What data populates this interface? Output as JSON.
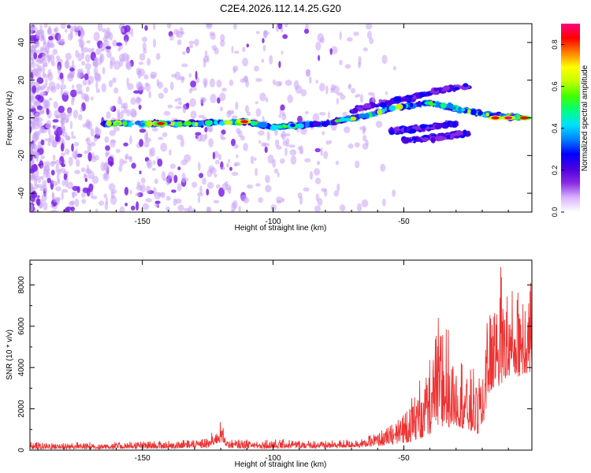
{
  "title": "C2E4.2026.112.14.25.G20",
  "chart_data": [
    {
      "type": "heatmap",
      "title": "C2E4.2026.112.14.25.G20",
      "xlabel": "Height of straight line (km)",
      "ylabel": "Frequency (Hz)",
      "xlim": [
        -193,
        -1
      ],
      "ylim": [
        -50,
        50
      ],
      "xticks": [
        -150,
        -100,
        -50
      ],
      "yticks": [
        -40,
        -20,
        0,
        20,
        40
      ],
      "colorbar": {
        "label": "Normalized spectral amplitude",
        "range": [
          0,
          0.9
        ],
        "ticks": [
          0.0,
          0.2,
          0.4,
          0.6,
          0.8
        ],
        "colors": [
          "#ffffff",
          "#d9b3ff",
          "#8a2be2",
          "#4b00e0",
          "#0000ff",
          "#0080ff",
          "#00e0ff",
          "#00ff80",
          "#40ff00",
          "#c0ff00",
          "#ffff00",
          "#ff8000",
          "#ff0000",
          "#ff0080"
        ]
      },
      "ridge": {
        "description": "main spectral ridge near 0 Hz rising toward higher heights",
        "points": [
          {
            "x": -165,
            "y": -3
          },
          {
            "x": -150,
            "y": -3
          },
          {
            "x": -130,
            "y": -3
          },
          {
            "x": -110,
            "y": -2
          },
          {
            "x": -100,
            "y": -5
          },
          {
            "x": -80,
            "y": -3
          },
          {
            "x": -65,
            "y": 1
          },
          {
            "x": -55,
            "y": 5
          },
          {
            "x": -40,
            "y": 8
          },
          {
            "x": -20,
            "y": 2
          },
          {
            "x": -5,
            "y": 0
          }
        ]
      },
      "branches": [
        {
          "points": [
            {
              "x": -70,
              "y": 4
            },
            {
              "x": -50,
              "y": 10
            },
            {
              "x": -35,
              "y": 15
            },
            {
              "x": -25,
              "y": 17
            }
          ]
        },
        {
          "points": [
            {
              "x": -55,
              "y": -7
            },
            {
              "x": -40,
              "y": -5
            },
            {
              "x": -30,
              "y": -3
            }
          ]
        },
        {
          "points": [
            {
              "x": -50,
              "y": -12
            },
            {
              "x": -35,
              "y": -10
            },
            {
              "x": -25,
              "y": -8
            }
          ]
        }
      ],
      "hotspots": [
        {
          "x": -143,
          "y": -3,
          "value": 0.8
        },
        {
          "x": -111,
          "y": -2,
          "value": 0.85
        },
        {
          "x": -10,
          "y": 0,
          "value": 0.9
        },
        {
          "x": -15,
          "y": 0,
          "value": 0.85
        },
        {
          "x": -4,
          "y": 0,
          "value": 0.8
        }
      ]
    },
    {
      "type": "line",
      "xlabel": "Height of straight line (km)",
      "ylabel": "SNR (10 * v/v)",
      "xlim": [
        -193,
        -1
      ],
      "ylim": [
        0,
        9200
      ],
      "xticks": [
        -150,
        -100,
        -50
      ],
      "yticks": [
        0,
        2000,
        4000,
        6000,
        8000
      ],
      "series": [
        {
          "name": "SNR",
          "color": "#ee3333",
          "envelope": [
            {
              "x": -193,
              "low": 50,
              "high": 400
            },
            {
              "x": -170,
              "low": 50,
              "high": 400
            },
            {
              "x": -140,
              "low": 80,
              "high": 450
            },
            {
              "x": -125,
              "low": 100,
              "high": 600
            },
            {
              "x": -120,
              "low": 400,
              "high": 1400
            },
            {
              "x": -117,
              "low": 100,
              "high": 500
            },
            {
              "x": -100,
              "low": 80,
              "high": 550
            },
            {
              "x": -80,
              "low": 100,
              "high": 450
            },
            {
              "x": -65,
              "low": 150,
              "high": 600
            },
            {
              "x": -55,
              "low": 250,
              "high": 1200
            },
            {
              "x": -47,
              "low": 400,
              "high": 2700
            },
            {
              "x": -40,
              "low": 700,
              "high": 4500
            },
            {
              "x": -36,
              "low": 1000,
              "high": 7000
            },
            {
              "x": -30,
              "low": 1200,
              "high": 5000
            },
            {
              "x": -25,
              "low": 900,
              "high": 3900
            },
            {
              "x": -20,
              "low": 700,
              "high": 4200
            },
            {
              "x": -18,
              "low": 2500,
              "high": 7200
            },
            {
              "x": -13,
              "low": 3200,
              "high": 9200
            },
            {
              "x": -9,
              "low": 3500,
              "high": 7800
            },
            {
              "x": -5,
              "low": 3600,
              "high": 8200
            },
            {
              "x": -1,
              "low": 3800,
              "high": 8600
            }
          ]
        }
      ]
    }
  ]
}
